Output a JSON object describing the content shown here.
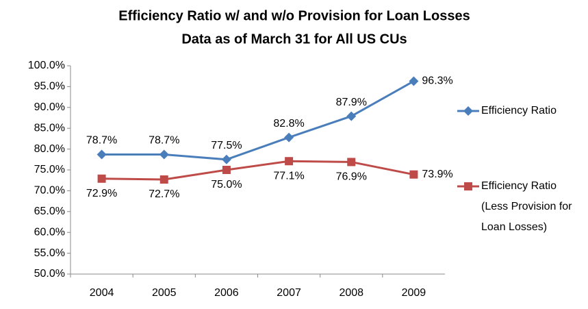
{
  "chart_data": {
    "type": "line",
    "title": "Efficiency Ratio w/ and w/o Provision for Loan Losses",
    "subtitle": "Data as of March 31 for All US CUs",
    "categories": [
      "2004",
      "2005",
      "2006",
      "2007",
      "2008",
      "2009"
    ],
    "series": [
      {
        "name": "Efficiency Ratio",
        "color": "#4a7ebb",
        "marker": "diamond",
        "values": [
          78.7,
          78.7,
          77.5,
          82.8,
          87.9,
          96.3
        ],
        "value_labels": [
          "78.7%",
          "78.7%",
          "77.5%",
          "82.8%",
          "87.9%",
          "96.3%"
        ]
      },
      {
        "name": "Efficiency Ratio (Less Provision for Loan Losses)",
        "color": "#be4b48",
        "marker": "square",
        "values": [
          72.9,
          72.7,
          75.0,
          77.1,
          76.9,
          73.9
        ],
        "value_labels": [
          "72.9%",
          "72.7%",
          "75.0%",
          "77.1%",
          "76.9%",
          "73.9%"
        ]
      }
    ],
    "ylim": [
      50,
      100
    ],
    "yticks": [
      {
        "value": 50,
        "label": "50.0%"
      },
      {
        "value": 55,
        "label": "55.0%"
      },
      {
        "value": 60,
        "label": "60.0%"
      },
      {
        "value": 65,
        "label": "65.0%"
      },
      {
        "value": 70,
        "label": "70.0%"
      },
      {
        "value": 75,
        "label": "75.0%"
      },
      {
        "value": 80,
        "label": "80.0%"
      },
      {
        "value": 85,
        "label": "85.0%"
      },
      {
        "value": 90,
        "label": "90.0%"
      },
      {
        "value": 95,
        "label": "95.0%"
      },
      {
        "value": 100,
        "label": "100.0%"
      }
    ],
    "grid": false,
    "legend": "right"
  }
}
